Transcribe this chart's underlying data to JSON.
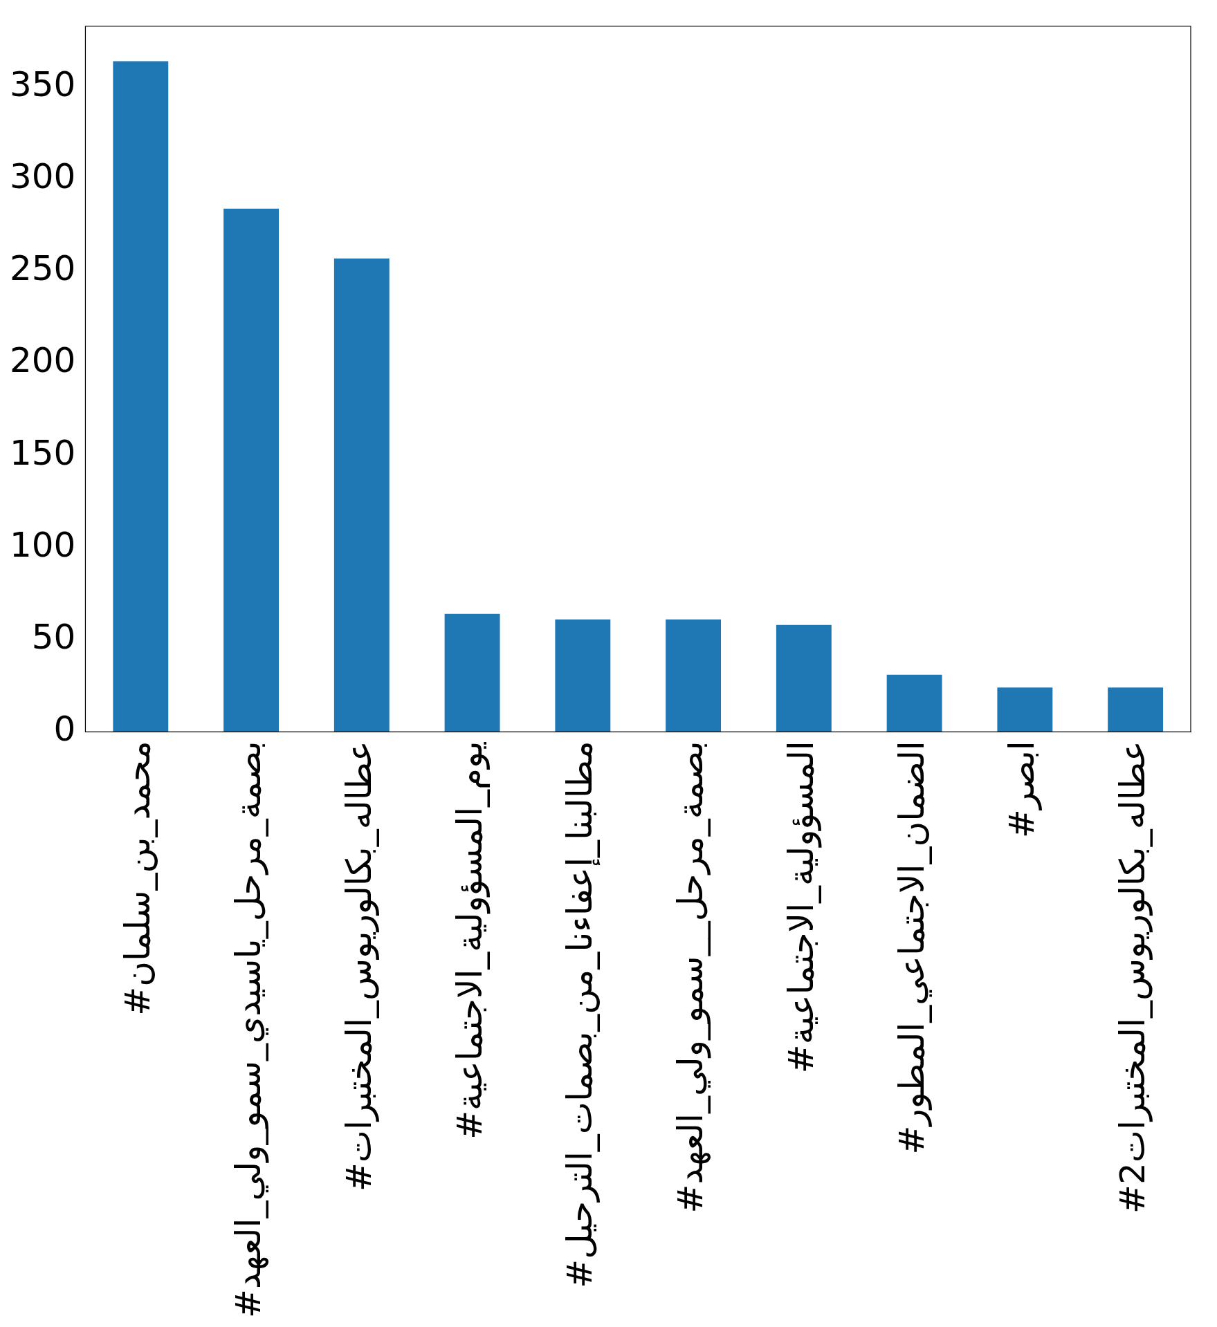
{
  "chart_data": {
    "type": "bar",
    "categories": [
      "#محمد_بن_سلمان",
      "#بصمة_مرحل_ياسيدي_سمو_ولي_العهد",
      "#عطاله_بكالوريوس_المختبرات",
      "#يوم_المسؤولية_الاجتماعية",
      "#مطالبنا_إعفاءنا_من_بصمات_الترحيل",
      "#بصمة_مرحل__سمو_ولي_العهد",
      "#المسؤولية_الاجتماعية",
      "#الضمان_الاجتماعي_المطور",
      "#ابصر",
      "#عطاله_بكالوريوس_المختبرات2"
    ],
    "values": [
      364,
      284,
      257,
      64,
      61,
      61,
      58,
      31,
      24,
      24
    ],
    "color": "#1f77b4",
    "ylim": [
      0,
      383
    ],
    "yticks": [
      0,
      50,
      100,
      150,
      200,
      250,
      300,
      350
    ],
    "grid": false
  }
}
